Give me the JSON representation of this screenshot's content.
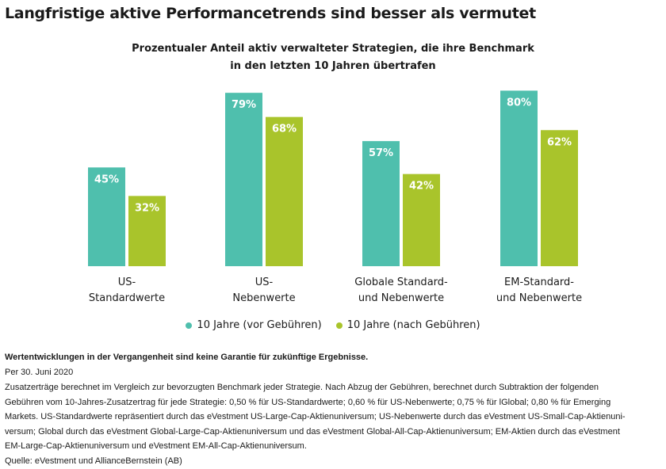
{
  "header": {
    "title": "Langfristige aktive Performancetrends sind besser als vermutet"
  },
  "chart_data": {
    "type": "bar",
    "title_lines": [
      "Prozentualer Anteil aktiv verwalteter Strategien, die ihre Benchmark",
      "in den letzten 10 Jahren übertrafen"
    ],
    "categories": [
      [
        "US-",
        "Standardwerte"
      ],
      [
        "US-",
        "Nebenwerte"
      ],
      [
        "Globale Standard-",
        "und Nebenwerte"
      ],
      [
        "EM-Standard-",
        "und Nebenwerte"
      ]
    ],
    "series": [
      {
        "name": "10 Jahre (vor Gebühren)",
        "values": [
          45,
          79,
          57,
          80
        ],
        "labels": [
          "45%",
          "79%",
          "57%",
          "80%"
        ],
        "color": "#4fbfad"
      },
      {
        "name": "10 Jahre (nach Gebühren)",
        "values": [
          32,
          68,
          42,
          62
        ],
        "labels": [
          "32%",
          "68%",
          "42%",
          "62%"
        ],
        "color": "#a9c42b"
      }
    ],
    "ylim": [
      0,
      100
    ],
    "grid": false,
    "legend_position": "bottom-center"
  },
  "notes": {
    "disclaimer": "Wertentwicklungen in der Vergangenheit sind keine Garantie für zukünftige Ergebnisse.",
    "date": "Per 30. Juni 2020",
    "footnote_lines": [
      "Zusatzerträge berechnet im Vergleich zur bevorzugten Benchmark jeder Strategie. Nach Abzug der Gebühren, berechnet durch Subtraktion der folgenden",
      "Gebühren vom 10-Jahres-Zusatzertrag für jede Strategie: 0,50 % für US-Standardwerte; 0,60 % für US-Nebenwerte; 0,75 % für lGlobal; 0,80 % für Emerging",
      "Markets. US-Standardwerte repräsentiert durch das eVestment US-Large-Cap-Aktienuniversum; US-Nebenwerte durch das eVestment US-Small-Cap-Aktienuni-",
      "versum; Global durch das eVestment Global-Large-Cap-Aktienuniversum und das eVestment Global-All-Cap-Aktienuniversum; EM-Aktien durch das eVestment",
      "EM-Large-Cap-Aktienuniversum und eVestment EM-All-Cap-Aktienuniversum."
    ],
    "source": "Quelle: eVestment und AllianceBernstein (AB)"
  }
}
